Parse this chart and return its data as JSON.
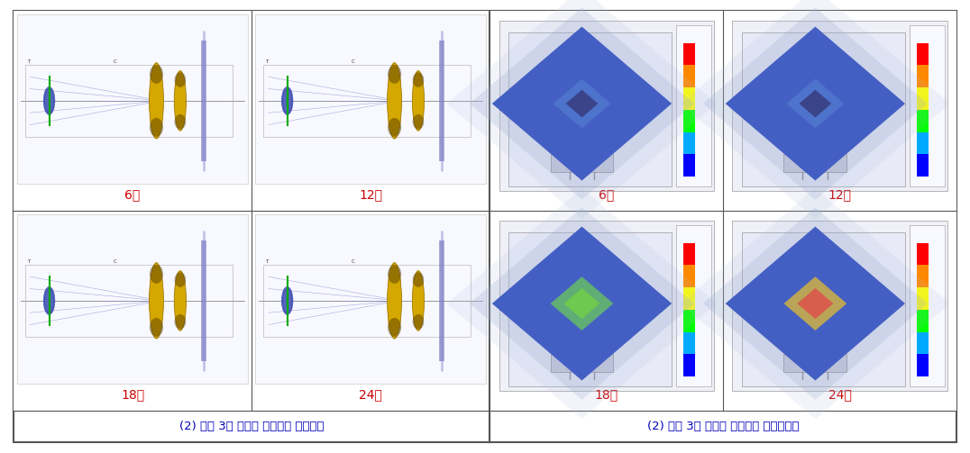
{
  "figsize": [
    10.76,
    5.03
  ],
  "dpi": 100,
  "background_color": "#ffffff",
  "outer_border_color": "#555555",
  "outer_border_lw": 1.2,
  "left_panel_title": "(2) 배율 3배 이상의 프로젝션 렌즈설계",
  "right_panel_title": "(2) 배율 3배 이상의 프로젝션 배광이미지",
  "title_color": "#0000bb",
  "title_fontsize": 9.5,
  "label_color": "#cc0000",
  "label_fontsize": 10,
  "labels_left": [
    "6도",
    "12도",
    "18도",
    "24도"
  ],
  "labels_right": [
    "6도",
    "12도",
    "18도",
    "24도"
  ],
  "grid_line_color": "#555555",
  "grid_line_lw": 0.8,
  "divider_lw": 1.5,
  "hot_colors": [
    "#000088",
    "#000088",
    "#44aa00",
    "#dd2200"
  ],
  "panel_bg": "#ffffff",
  "lens_bg": "#ffffff"
}
